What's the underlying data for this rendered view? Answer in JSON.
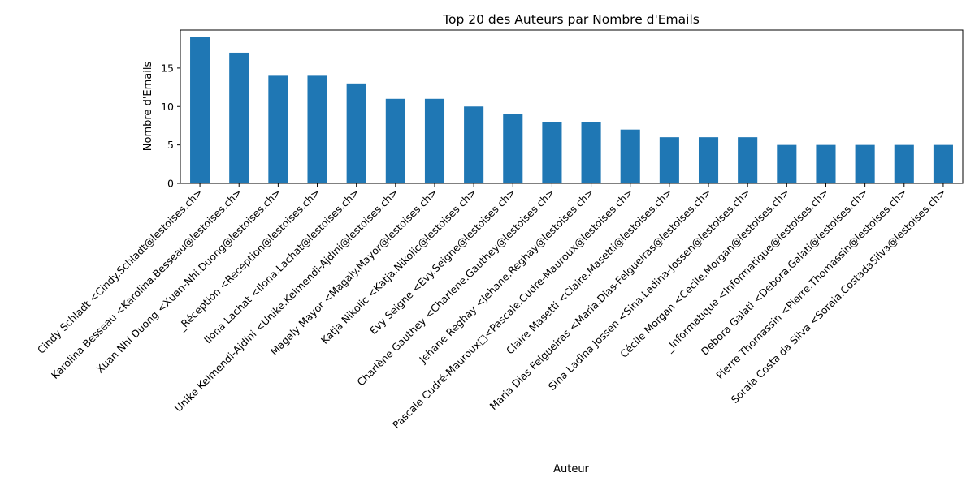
{
  "chart_data": {
    "type": "bar",
    "title": "Top 20 des Auteurs par Nombre d'Emails",
    "xlabel": "Auteur",
    "ylabel": "Nombre d'Emails",
    "ylim": [
      0,
      19.95
    ],
    "yticks": [
      0,
      5,
      10,
      15
    ],
    "grid": false,
    "legend": "none",
    "colors": {
      "bar": "#1f77b4",
      "axis": "#000000"
    },
    "categories": [
      "Cindy Schladt <Cindy.Schladt@lestoises.ch>",
      "Karolina Besseau <Karolina.Besseau@lestoises.ch>",
      "Xuan Nhi Duong <Xuan-Nhi.Duong@lestoises.ch>",
      "_Réception <Reception@lestoises.ch>",
      "Ilona Lachat <Ilona.Lachat@lestoises.ch>",
      "Unike Kelmendi-Ajdini <Unike.Kelmendi-Ajdini@lestoises.ch>",
      "Magaly Mayor <Magaly.Mayor@lestoises.ch>",
      "Katja Nikolic <Katja.Nikolic@lestoises.ch>",
      "Evy Seigne <Evy.Seigne@lestoises.ch>",
      "Charlène Gauthey <Charlene.Gauthey@lestoises.ch>",
      "Jehane Reghay <Jehane.Reghay@lestoises.ch>",
      "Pascale Cudré-Mauroux□<Pascale.Cudre-Mauroux@lestoises.ch>",
      "Claire Masetti <Claire.Masetti@lestoises.ch>",
      "Maria Dias Felgueiras <Maria.Dias-Felgueiras@lestoises.ch>",
      "Sina Ladina Jossen <Sina.Ladina-Jossen@lestoises.ch>",
      "Cécile Morgan <Cecile.Morgan@lestoises.ch>",
      "_Informatique <Informatique@lestoises.ch>",
      "Debora Galati <Debora.Galati@lestoises.ch>",
      "Pierre Thomassin <Pierre.Thomassin@lestoises.ch>",
      "Soraia Costa da Silva <Soraia.CostadaSilva@lestoises.ch>"
    ],
    "values": [
      19,
      17,
      14,
      14,
      13,
      11,
      11,
      10,
      9,
      8,
      8,
      7,
      6,
      6,
      6,
      5,
      5,
      5,
      5,
      5
    ]
  }
}
